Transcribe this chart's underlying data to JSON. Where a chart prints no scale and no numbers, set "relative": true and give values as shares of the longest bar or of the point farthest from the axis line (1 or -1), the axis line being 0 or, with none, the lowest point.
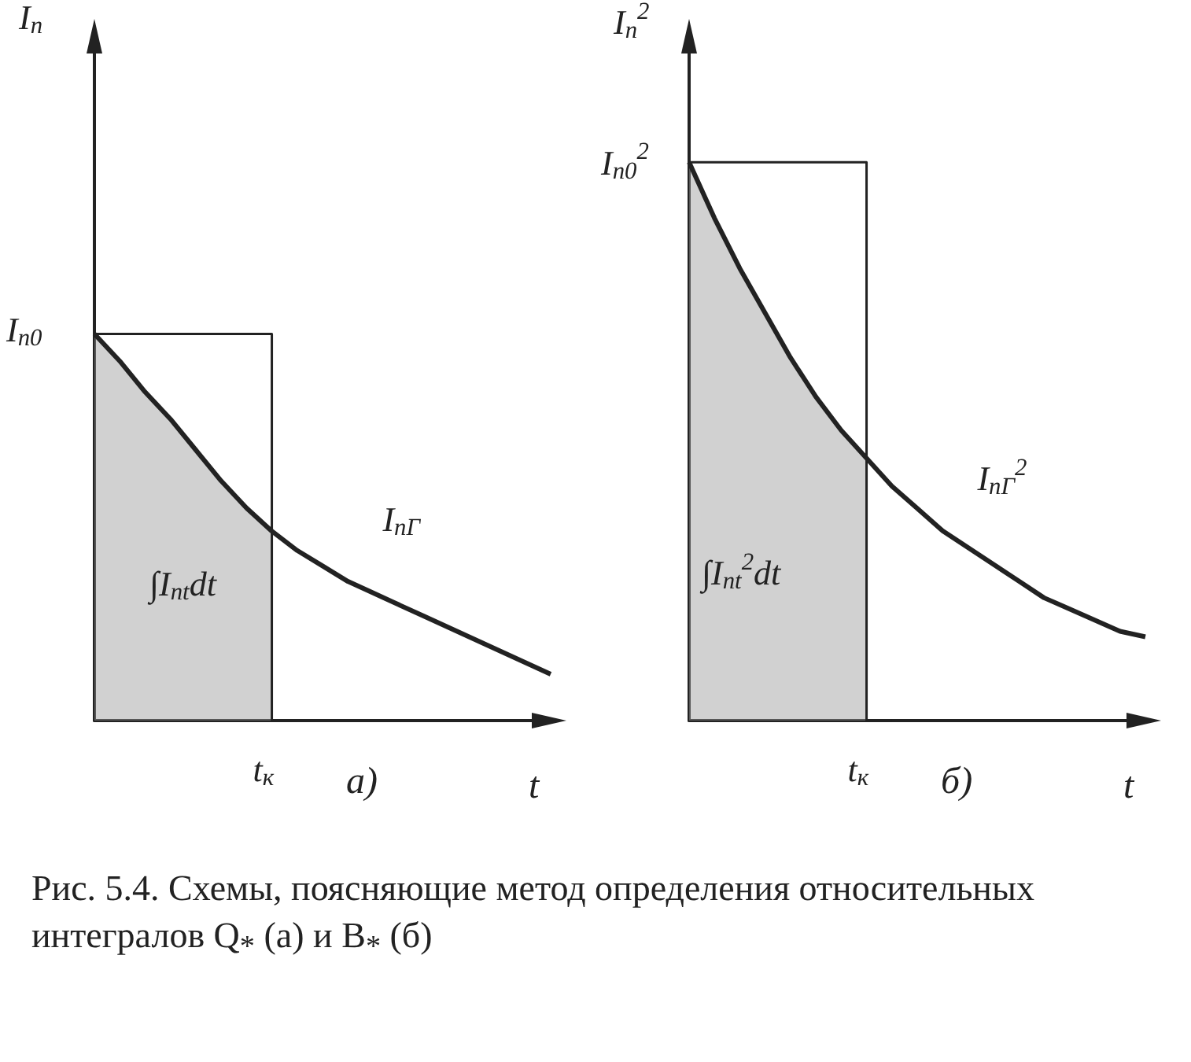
{
  "chart_data": [
    {
      "type": "line",
      "relative": true,
      "title": "а)",
      "ylabel": "I$_{п}$",
      "xlabel": "t",
      "marker": "none",
      "categories": [
        null,
        null,
        null,
        null,
        null,
        null,
        null,
        null,
        null,
        null,
        null,
        null,
        null,
        null,
        null,
        null,
        null,
        null,
        null
      ],
      "series": [
        {
          "name": "I$_{пГ}$",
          "color": "#222222",
          "values": [
            1.0,
            0.93,
            0.85,
            0.78,
            0.7,
            0.62,
            0.55,
            0.49,
            0.44,
            0.4,
            0.36,
            0.33,
            0.3,
            0.27,
            0.24,
            0.21,
            0.18,
            0.15,
            0.12
          ]
        },
        {
          "type": "area",
          "color": "#9a9a9a",
          "values": [
            1.0,
            0.93,
            0.85,
            0.78,
            0.7,
            0.62,
            0.55,
            0.49,
            null,
            null,
            null,
            null,
            null,
            null,
            null,
            null,
            null,
            null,
            null
          ]
        },
        {
          "type": "step",
          "color": "#222222",
          "values": [
            1,
            1,
            1,
            1,
            1,
            1,
            1,
            1,
            0,
            null,
            null,
            null,
            null,
            null,
            null,
            null,
            null,
            null,
            null
          ]
        }
      ],
      "annotations": [
        "∫I$_{пt}$dt",
        "I$_{п0}$",
        "t$_{к}$",
        "Рис. 5.4. Схемы, поясняющие метод определения относительных интегралов Q$_{*}$ (а) и B$_{*}$ (б)"
      ]
    },
    {
      "type": "line",
      "relative": true,
      "title": "б)",
      "ylabel": "I$_{п}$$^{2}$",
      "xlabel": "t",
      "marker": "none",
      "categories": [
        null,
        null,
        null,
        null,
        null,
        null,
        null,
        null,
        null,
        null,
        null,
        null,
        null,
        null,
        null,
        null,
        null,
        null,
        null
      ],
      "series": [
        {
          "name": "I$_{пГ}$$^{2}$",
          "color": "#222222",
          "values": [
            1.0,
            0.9,
            0.81,
            0.73,
            0.65,
            0.58,
            0.52,
            0.47,
            0.42,
            0.38,
            0.34,
            0.31,
            0.28,
            0.25,
            0.22,
            0.2,
            0.18,
            0.16,
            0.15
          ]
        },
        {
          "type": "area",
          "color": "#9a9a9a",
          "values": [
            1.0,
            0.9,
            0.81,
            0.73,
            0.65,
            0.58,
            0.52,
            0.47,
            null,
            null,
            null,
            null,
            null,
            null,
            null,
            null,
            null,
            null,
            null
          ]
        },
        {
          "type": "step",
          "color": "#222222",
          "values": [
            1,
            1,
            1,
            1,
            1,
            1,
            1,
            1,
            0,
            null,
            null,
            null,
            null,
            null,
            null,
            null,
            null,
            null,
            null
          ]
        }
      ],
      "annotations": [
        "∫I$_{пt}$$^{2}$dt",
        "I$_{п0}$$^{2}$",
        "t$_{к}$"
      ]
    }
  ]
}
